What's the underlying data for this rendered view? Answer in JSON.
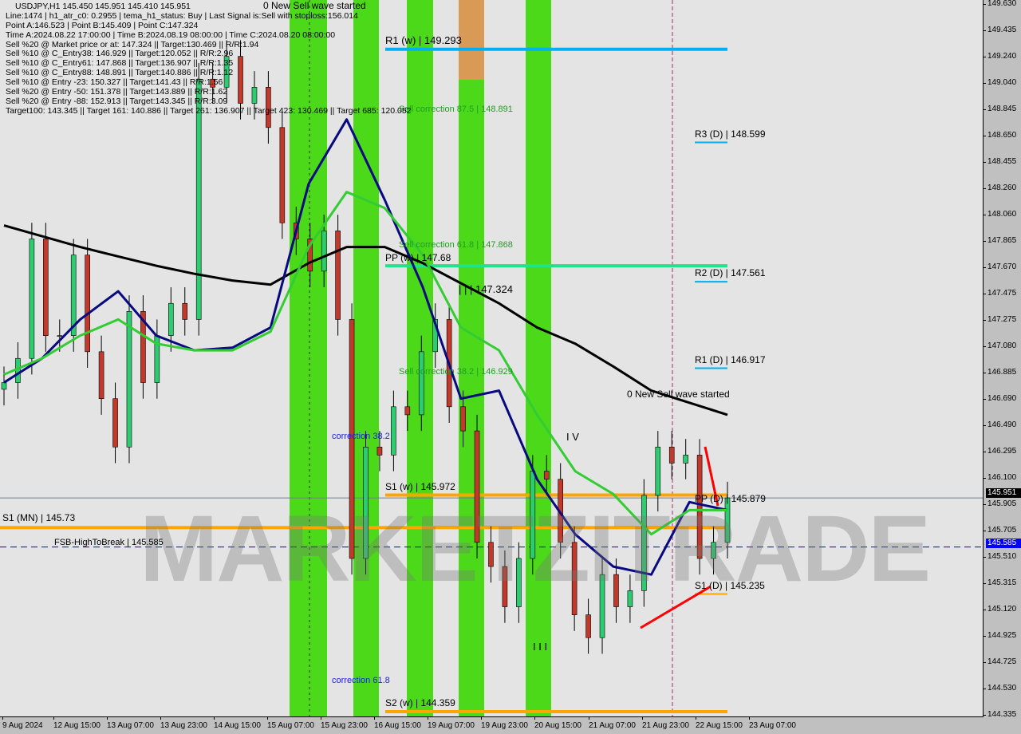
{
  "header": {
    "symbol_line": "USDJPY,H1  145.450 145.951 145.410 145.951",
    "lines": [
      "Line:1474 | h1_atr_c0: 0.2955 | tema_h1_status: Buy | Last Signal is:Sell with stoploss:156.014",
      "Point A:146.523 | Point B:145.409 | Point C:147.324",
      "Time A:2024.08.22 17:00:00 | Time B:2024.08.19 08:00:00 | Time C:2024.08.20 08:00:00",
      "Sell %20 @ Market price or at: 147.324 || Target:130.469 || R/R:1.94",
      "Sell %10 @ C_Entry38: 146.929 || Target:120.052 || R/R:2.96",
      "Sell %10 @ C_Entry61: 147.868 || Target:136.907 || R/R:1.35",
      "Sell %10 @ C_Entry88: 148.891 || Target:140.886 || R/R:1.12",
      "Sell %10 @ Entry -23: 150.327 || Target:141.43 || R/R:1.56",
      "Sell %20 @ Entry -50: 151.378 || Target:143.889 || R/R:1.62",
      "Sell %20 @ Entry -88: 152.913 || Target:143.345 || R/R:3.09",
      "Target100: 143.345 || Target 161: 140.886 || Target 261: 136.907 || Target 423: 130.469 || Target 685: 120.052"
    ]
  },
  "annotations": {
    "wave_top": "0 New Sell wave started",
    "wave_right": "0 New Sell wave started",
    "sell_corr_875": "Sell correction 87.5 | 148.891",
    "sell_corr_618": "Sell correction 61.8 | 147.868",
    "sell_corr_382": "Sell correction 38.2 | 146.929",
    "corr_382": "correction 38.2",
    "corr_618": "correction 61.8",
    "point_c": "| | | 147.324",
    "wave_iv": "I V",
    "wave_iii": "I I I",
    "watermark": "MARKETZITRADE"
  },
  "levels": {
    "r1_w": "R1 (w) | 149.293",
    "pp_w": "PP (w) | 147.68",
    "s1_w": "S1 (w) | 145.972",
    "s2_w": "S2 (w) | 144.359",
    "s1_mn": "S1 (MN) | 145.73",
    "fsb": "FSB-HighToBreak | 145.585",
    "r3_d": "R3 (D) | 148.599",
    "r2_d": "R2 (D) | 147.561",
    "r1_d": "R1 (D) | 146.917",
    "pp_d": "PP (D) | 145.879",
    "s1_d": "S1 (D) | 145.235"
  },
  "colors": {
    "bull": "#2ecc71",
    "bear": "#c0392b",
    "ma_long": "#000000",
    "ma_fast": "#0a0a80",
    "ma_mid": "#33cc33",
    "weekly_r": "#00b0f0",
    "pp": "#22e38a",
    "support": "#ffa500",
    "fsb": "#0000ff",
    "band_green": "#4cd91a",
    "band_orange": "#d99a55"
  },
  "chart_data": {
    "type": "candlestick",
    "title": "USDJPY,H1",
    "ylim": [
      144.335,
      149.63
    ],
    "y_ticks": [
      "149.630",
      "149.435",
      "149.240",
      "149.040",
      "148.845",
      "148.650",
      "148.455",
      "148.260",
      "148.060",
      "147.865",
      "147.670",
      "147.475",
      "147.275",
      "147.080",
      "146.885",
      "146.690",
      "146.490",
      "146.295",
      "146.100",
      "145.905",
      "145.705",
      "145.510",
      "145.315",
      "145.120",
      "144.925",
      "144.725",
      "144.530",
      "144.335"
    ],
    "x_ticks": [
      "9 Aug 2024",
      "12 Aug 15:00",
      "13 Aug 07:00",
      "13 Aug 23:00",
      "14 Aug 15:00",
      "15 Aug 07:00",
      "15 Aug 23:00",
      "16 Aug 15:00",
      "19 Aug 07:00",
      "19 Aug 23:00",
      "20 Aug 15:00",
      "21 Aug 07:00",
      "21 Aug 23:00",
      "22 Aug 15:00",
      "23 Aug 07:00"
    ],
    "current_price": "145.951",
    "fsb_price": "145.585",
    "closes": [
      146.81,
      146.99,
      147.88,
      147.16,
      147.16,
      147.76,
      147.04,
      146.69,
      146.33,
      147.34,
      146.81,
      147.16,
      147.4,
      147.28,
      149.07,
      149.01,
      149.24,
      148.89,
      149.01,
      148.71,
      148.0,
      147.88,
      147.64,
      147.94,
      147.28,
      145.5,
      146.33,
      146.27,
      146.63,
      146.57,
      147.04,
      147.28,
      146.63,
      146.45,
      145.62,
      145.44,
      145.14,
      145.5,
      146.15,
      146.09,
      145.62,
      145.08,
      144.91,
      145.38,
      145.14,
      145.26,
      145.97,
      146.33,
      146.21,
      146.27,
      145.5,
      145.62,
      145.951
    ],
    "series": [
      {
        "key": "ma_long",
        "values": [
          147.98,
          147.9,
          147.82,
          147.75,
          147.68,
          147.62,
          147.57,
          147.54,
          147.7,
          147.82,
          147.82,
          147.7,
          147.55,
          147.4,
          147.22,
          147.1,
          146.93,
          146.75,
          146.66,
          146.57
        ]
      },
      {
        "key": "ma_fast",
        "values": [
          146.81,
          146.99,
          147.28,
          147.49,
          147.16,
          147.05,
          147.07,
          147.22,
          148.29,
          148.77,
          148.17,
          147.52,
          146.69,
          146.75,
          146.09,
          145.68,
          145.44,
          145.38,
          145.92,
          145.86
        ]
      },
      {
        "key": "ma_mid",
        "values": [
          146.87,
          146.99,
          147.16,
          147.28,
          147.1,
          147.05,
          147.05,
          147.19,
          147.82,
          148.23,
          148.11,
          147.76,
          147.22,
          147.05,
          146.57,
          146.15,
          145.98,
          145.68,
          145.86,
          145.86
        ]
      }
    ],
    "horizontal_levels": [
      {
        "key": "r1_w",
        "price": 149.293,
        "color": "weekly_r",
        "scope": "week"
      },
      {
        "key": "pp_w",
        "price": 147.68,
        "color": "pp",
        "scope": "week"
      },
      {
        "key": "s1_w",
        "price": 145.972,
        "color": "support",
        "scope": "week"
      },
      {
        "key": "s2_w",
        "price": 144.359,
        "color": "support",
        "scope": "week"
      },
      {
        "key": "s1_mn",
        "price": 145.73,
        "color": "support",
        "scope": "all"
      },
      {
        "key": "r3_d",
        "price": 148.599,
        "color": "weekly_r",
        "scope": "day"
      },
      {
        "key": "r2_d",
        "price": 147.561,
        "color": "weekly_r",
        "scope": "day"
      },
      {
        "key": "r1_d",
        "price": 146.917,
        "color": "weekly_r",
        "scope": "day"
      },
      {
        "key": "s1_d",
        "price": 145.235,
        "color": "support",
        "scope": "day"
      }
    ]
  }
}
